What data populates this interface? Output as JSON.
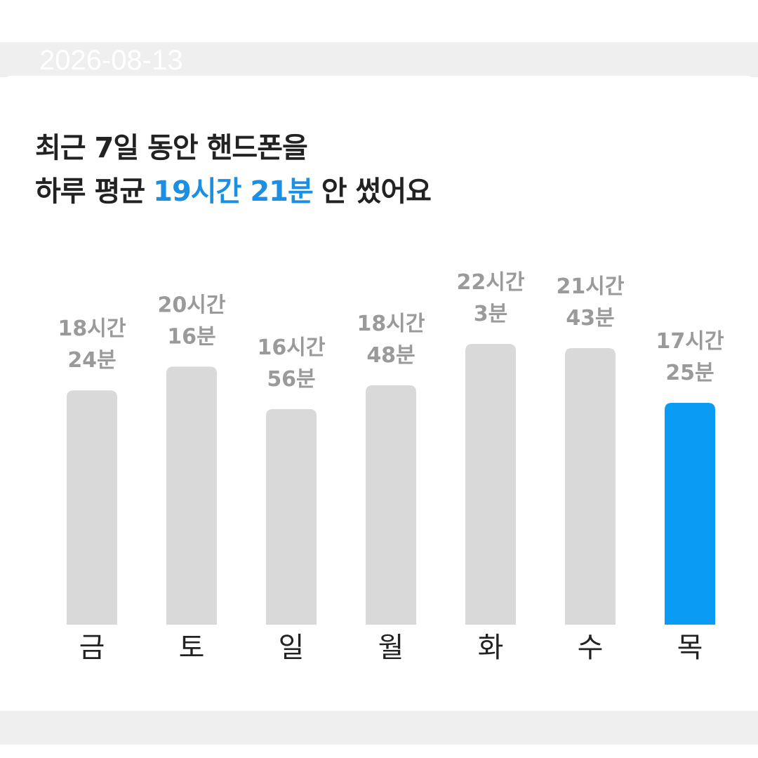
{
  "header": {
    "date": "2026-08-13"
  },
  "chart_data": {
    "type": "bar",
    "title": [
      "최근 7일 동안 핸드폰을",
      [
        "하루 평균",
        "19시간 21분",
        "안 썼어요"
      ]
    ],
    "categories": [
      "금",
      "토",
      "일",
      "월",
      "화",
      "수",
      "목"
    ],
    "values": [
      1104,
      1216,
      1016,
      1128,
      1323,
      1303,
      1045
    ],
    "value_labels": [
      "18시간 24분",
      "20시간 16분",
      "16시간 56분",
      "18시간 48분",
      "22시간 3분",
      "21시간 43분",
      "17시간 25분"
    ],
    "colors": [
      "#d9d9d9",
      "#d9d9d9",
      "#d9d9d9",
      "#d9d9d9",
      "#d9d9d9",
      "#d9d9d9",
      "#0a9bf5"
    ]
  }
}
